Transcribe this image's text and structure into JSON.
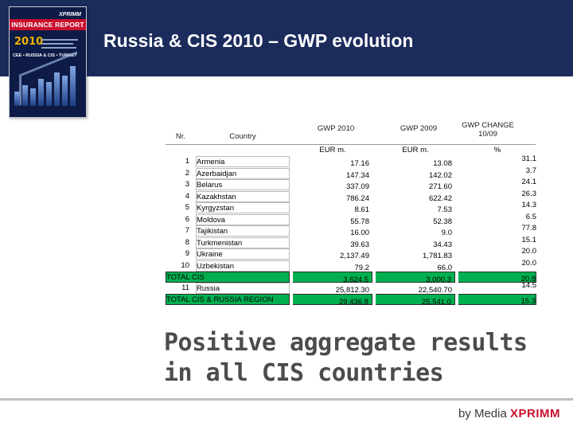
{
  "title": "Russia & CIS 2010 – GWP evolution",
  "cover": {
    "brand": "XPRIMM",
    "report": "INSURANCE REPORT",
    "year": "2010",
    "region": "CEE • RUSSIA & CIS • TURKEY",
    "accent": "#c8102e"
  },
  "table": {
    "headers": {
      "nr": "Nr.",
      "country": "Country",
      "gwp2010": "GWP 2010",
      "gwp2009": "GWP 2009",
      "change": "GWP CHANGE 10/09",
      "unit_eur": "EUR m.",
      "unit_eur_2": "EUR m.",
      "unit_pct": "%"
    },
    "rows": [
      {
        "nr": "1",
        "country": "Armenia",
        "gwp2010": "17.16",
        "gwp2009": "13.08",
        "change": "31.1"
      },
      {
        "nr": "2",
        "country": "Azerbaidjan",
        "gwp2010": "147.34",
        "gwp2009": "142.02",
        "change": "3.7"
      },
      {
        "nr": "3",
        "country": "Belarus",
        "gwp2010": "337.09",
        "gwp2009": "271.60",
        "change": "24.1"
      },
      {
        "nr": "4",
        "country": "Kazakhstan",
        "gwp2010": "786.24",
        "gwp2009": "622.42",
        "change": "26.3"
      },
      {
        "nr": "5",
        "country": "Kyrgyzstan",
        "gwp2010": "8.61",
        "gwp2009": "7.53",
        "change": "14.3"
      },
      {
        "nr": "6",
        "country": "Moldova",
        "gwp2010": "55.78",
        "gwp2009": "52.38",
        "change": "6.5"
      },
      {
        "nr": "7",
        "country": "Tajikistan",
        "gwp2010": "16.00",
        "gwp2009": "9.0",
        "change": "77.8"
      },
      {
        "nr": "8",
        "country": "Turkmenistan",
        "gwp2010": "39.63",
        "gwp2009": "34.43",
        "change": "15.1"
      },
      {
        "nr": "9",
        "country": "Ukraine",
        "gwp2010": "2,137.49",
        "gwp2009": "1,781.83",
        "change": "20.0"
      },
      {
        "nr": "10",
        "country": "Uzbekistan",
        "gwp2010": "79.2",
        "gwp2009": "66.0",
        "change": "20.0"
      }
    ],
    "total_cis": {
      "label": "TOTAL CIS",
      "gwp2010": "3,624.5",
      "gwp2009": "3,000.3",
      "change": "20.8"
    },
    "russia": {
      "nr": "11",
      "country": "Russia",
      "gwp2010": "25,812.30",
      "gwp2009": "22,540.70",
      "change": "14.5"
    },
    "total_region": {
      "label": "TOTAL CIS & RUSSIA REGION",
      "gwp2010": "29,436.8",
      "gwp2009": "25,541.0",
      "change": "15.3"
    },
    "highlight_color": "#00b050"
  },
  "message": {
    "line1": "Positive aggregate results",
    "line2": "in all CIS countries"
  },
  "footer": {
    "by": "by Media",
    "brand": "XPRIMM"
  }
}
